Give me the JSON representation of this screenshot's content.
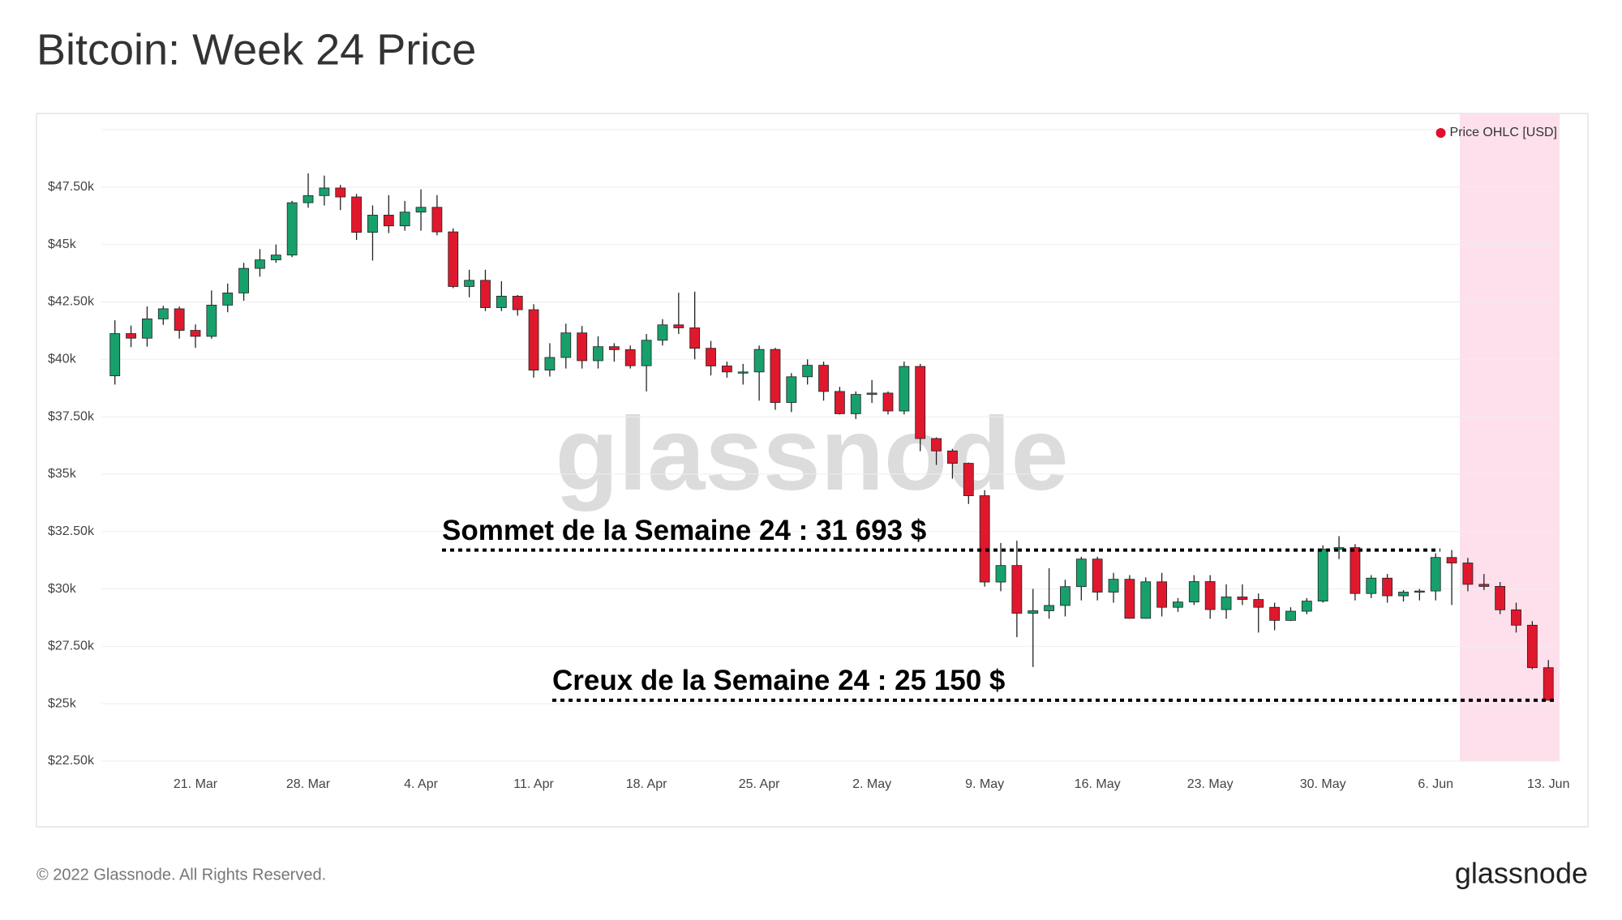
{
  "chart_data": {
    "type": "candlestick",
    "title": "Bitcoin: Week 24 Price",
    "legend": {
      "name": "Price OHLC [USD]",
      "color": "#e0102a",
      "position": "top-right"
    },
    "up_color": "#17a06b",
    "down_color": "#e0182d",
    "highlight_color": "#fde0ec",
    "grid": true,
    "categories": [
      "16. Mar",
      "17. Mar",
      "18. Mar",
      "19. Mar",
      "20. Mar",
      "21. Mar",
      "22. Mar",
      "23. Mar",
      "24. Mar",
      "25. Mar",
      "26. Mar",
      "27. Mar",
      "28. Mar",
      "29. Mar",
      "30. Mar",
      "31. Mar",
      "1. Apr",
      "2. Apr",
      "3. Apr",
      "4. Apr",
      "5. Apr",
      "6. Apr",
      "7. Apr",
      "8. Apr",
      "9. Apr",
      "10. Apr",
      "11. Apr",
      "12. Apr",
      "13. Apr",
      "14. Apr",
      "15. Apr",
      "16. Apr",
      "17. Apr",
      "18. Apr",
      "19. Apr",
      "20. Apr",
      "21. Apr",
      "22. Apr",
      "23. Apr",
      "24. Apr",
      "25. Apr",
      "26. Apr",
      "27. Apr",
      "28. Apr",
      "29. Apr",
      "30. Apr",
      "1. May",
      "2. May",
      "3. May",
      "4. May",
      "5. May",
      "6. May",
      "7. May",
      "8. May",
      "9. May",
      "10. May",
      "11. May",
      "12. May",
      "13. May",
      "14. May",
      "15. May",
      "16. May",
      "17. May",
      "18. May",
      "19. May",
      "20. May",
      "21. May",
      "22. May",
      "23. May",
      "24. May",
      "25. May",
      "26. May",
      "27. May",
      "28. May",
      "29. May",
      "30. May",
      "31. May",
      "1. Jun",
      "2. Jun",
      "3. Jun",
      "4. Jun",
      "5. Jun",
      "6. Jun",
      "7. Jun",
      "8. Jun",
      "9. Jun",
      "10. Jun",
      "11. Jun",
      "12. Jun",
      "13. Jun"
    ],
    "open": [
      39280,
      41120,
      40920,
      41760,
      42200,
      41260,
      41000,
      42360,
      42890,
      43960,
      44330,
      44540,
      46820,
      47130,
      47460,
      47070,
      45530,
      46280,
      45810,
      46410,
      46620,
      45550,
      43170,
      43440,
      42250,
      42750,
      42160,
      39530,
      40080,
      41150,
      39940,
      40550,
      40420,
      39720,
      40830,
      41500,
      41370,
      40480,
      39710,
      39450,
      39450,
      40430,
      38120,
      39240,
      39740,
      38600,
      37630,
      38470,
      38530,
      37750,
      39690,
      36550,
      36010,
      35470,
      34060,
      30300,
      31020,
      28940,
      29050,
      29280,
      30100,
      31300,
      29860,
      30420,
      28720,
      30310,
      29200,
      29430,
      30320,
      29100,
      29650,
      29540,
      29200,
      28630,
      29030,
      29470,
      31730,
      31800,
      29800,
      30470,
      29700,
      29860,
      29910,
      31370,
      31130,
      30200,
      30110,
      29090,
      28420,
      26570
    ],
    "high": [
      41700,
      41470,
      42300,
      42330,
      42300,
      41520,
      43000,
      43300,
      44200,
      44800,
      45000,
      46900,
      48100,
      48000,
      47600,
      47200,
      46700,
      47150,
      46900,
      47400,
      47150,
      45700,
      43900,
      43900,
      43400,
      42800,
      42400,
      40700,
      41550,
      41450,
      41000,
      40700,
      40600,
      41100,
      41750,
      42900,
      42950,
      40800,
      39900,
      39800,
      40600,
      40500,
      39400,
      40000,
      39900,
      38800,
      38600,
      39100,
      38600,
      39900,
      39800,
      36600,
      36100,
      35500,
      34300,
      32000,
      32100,
      30000,
      30900,
      30400,
      31400,
      31400,
      30700,
      30600,
      30500,
      30700,
      29600,
      30600,
      30600,
      30200,
      30200,
      29800,
      29400,
      29200,
      29600,
      31900,
      32300,
      31950,
      30600,
      30650,
      29950,
      30000,
      31550,
      31693,
      31350,
      30650,
      30300,
      29400,
      28600,
      26900
    ],
    "low": [
      38900,
      40530,
      40550,
      41500,
      40900,
      40500,
      40900,
      42050,
      42550,
      43600,
      44200,
      44450,
      46600,
      46700,
      46500,
      45200,
      44300,
      45500,
      45600,
      45600,
      45400,
      43100,
      42700,
      42100,
      42100,
      41900,
      39200,
      39250,
      39600,
      39600,
      39600,
      39900,
      39600,
      38600,
      40600,
      41100,
      40000,
      39300,
      39200,
      38900,
      38200,
      37800,
      37700,
      38900,
      38200,
      37600,
      37400,
      38100,
      37600,
      37600,
      36000,
      35400,
      34800,
      33700,
      30100,
      29900,
      27900,
      26600,
      28700,
      28800,
      29500,
      29500,
      29400,
      28700,
      28700,
      28800,
      29000,
      29300,
      28700,
      28700,
      29300,
      28100,
      28200,
      28600,
      28900,
      29400,
      31300,
      29500,
      29600,
      29400,
      29450,
      29500,
      29500,
      29300,
      29900,
      29950,
      28900,
      28100,
      26500,
      25150
    ],
    "close": [
      41120,
      40920,
      41760,
      42200,
      41260,
      41000,
      42360,
      42890,
      43960,
      44330,
      44540,
      46820,
      47130,
      47460,
      47070,
      45530,
      46280,
      45810,
      46410,
      46620,
      45550,
      43170,
      43440,
      42250,
      42750,
      42160,
      39530,
      40080,
      41150,
      39940,
      40550,
      40420,
      39720,
      40830,
      41500,
      41370,
      40480,
      39710,
      39450,
      39450,
      40430,
      38120,
      39240,
      39740,
      38600,
      37630,
      38470,
      38530,
      37750,
      39690,
      36550,
      36010,
      35470,
      34060,
      30300,
      31020,
      28940,
      29050,
      29280,
      30100,
      31300,
      29860,
      30420,
      28720,
      30310,
      29200,
      29430,
      30320,
      29100,
      29650,
      29540,
      29200,
      28630,
      29030,
      29470,
      31730,
      31800,
      29800,
      30470,
      29700,
      29860,
      29910,
      31370,
      31130,
      30200,
      30110,
      29090,
      28420,
      26570,
      25150
    ],
    "ylim": [
      22500,
      50000
    ],
    "yticks": [
      {
        "value": 22500,
        "label": "$22.50k"
      },
      {
        "value": 25000,
        "label": "$25k"
      },
      {
        "value": 27500,
        "label": "$27.50k"
      },
      {
        "value": 30000,
        "label": "$30k"
      },
      {
        "value": 32500,
        "label": "$32.50k"
      },
      {
        "value": 35000,
        "label": "$35k"
      },
      {
        "value": 37500,
        "label": "$37.50k"
      },
      {
        "value": 40000,
        "label": "$40k"
      },
      {
        "value": 42500,
        "label": "$42.50k"
      },
      {
        "value": 45000,
        "label": "$45k"
      },
      {
        "value": 47500,
        "label": "$47.50k"
      }
    ],
    "xticks": [
      "21. Mar",
      "28. Mar",
      "4. Apr",
      "11. Apr",
      "18. Apr",
      "25. Apr",
      "2. May",
      "9. May",
      "16. May",
      "23. May",
      "30. May",
      "6. Jun",
      "13. Jun"
    ],
    "annotations": [
      {
        "label": "Sommet de la Semaine 24 : 31 693 $",
        "value": 31693
      },
      {
        "label": "Creux de la Semaine 24 : 25 150 $",
        "value": 25150
      }
    ],
    "watermark": "glassnode"
  },
  "footer": {
    "copyright": "© 2022 Glassnode. All Rights Reserved.",
    "logo": "glassnode"
  }
}
